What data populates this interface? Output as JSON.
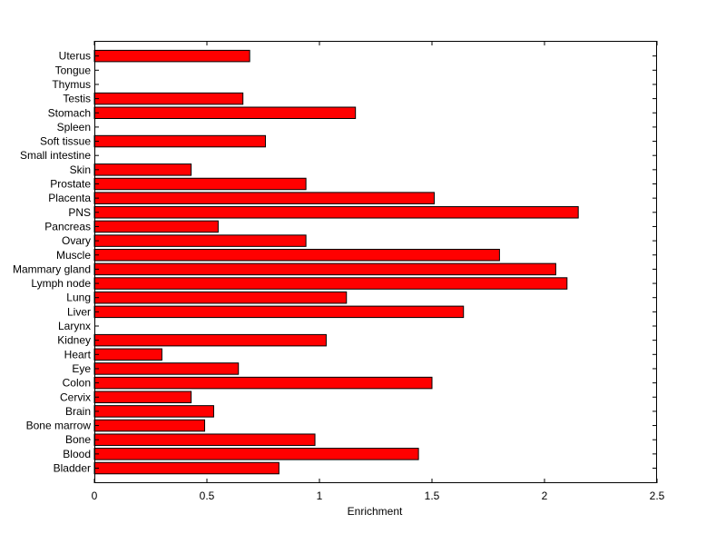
{
  "chart_data": {
    "type": "bar",
    "orientation": "horizontal",
    "title": "",
    "xlabel": "Enrichment",
    "ylabel": "",
    "xlim": [
      0,
      2.5
    ],
    "xticks": [
      "0",
      "0.5",
      "1",
      "1.5",
      "2",
      "2.5"
    ],
    "bar_color": "#ff0000",
    "bar_edge_color": "#000000",
    "grid": false,
    "categories": [
      "Bladder",
      "Blood",
      "Bone",
      "Bone marrow",
      "Brain",
      "Cervix",
      "Colon",
      "Eye",
      "Heart",
      "Kidney",
      "Larynx",
      "Liver",
      "Lung",
      "Lymph node",
      "Mammary gland",
      "Muscle",
      "Ovary",
      "Pancreas",
      "PNS",
      "Placenta",
      "Prostate",
      "Skin",
      "Small intestine",
      "Soft tissue",
      "Spleen",
      "Stomach",
      "Testis",
      "Thymus",
      "Tongue",
      "Uterus"
    ],
    "values": [
      0.82,
      1.44,
      0.98,
      0.49,
      0.53,
      0.43,
      1.5,
      0.64,
      0.3,
      1.03,
      0,
      1.64,
      1.12,
      2.1,
      2.05,
      1.8,
      0.94,
      0.55,
      2.15,
      1.51,
      0.94,
      0.43,
      0,
      0.76,
      0,
      1.16,
      0.66,
      0,
      0,
      0.69
    ]
  }
}
